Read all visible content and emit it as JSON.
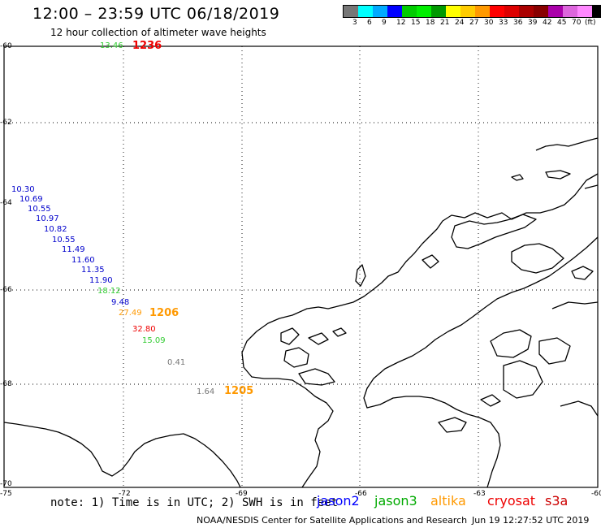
{
  "header": {
    "title": "12:00 – 23:59 UTC 06/18/2019",
    "subtitle": "12 hour collection of altimeter wave heights"
  },
  "legend": {
    "colors": [
      "#777777",
      "#00ffff",
      "#00aaff",
      "#0000ff",
      "#00cc00",
      "#00ee00",
      "#009900",
      "#ffff00",
      "#ffcc00",
      "#ff9900",
      "#ff0000",
      "#dd0000",
      "#aa0000",
      "#880000",
      "#aa00aa",
      "#dd66dd",
      "#ff88ff",
      "#000000"
    ],
    "labels": [
      "3",
      "6",
      "9",
      "12",
      "15",
      "18",
      "21",
      "24",
      "27",
      "30",
      "33",
      "36",
      "39",
      "42",
      "45",
      "70",
      "(ft)"
    ]
  },
  "axes": {
    "lat_labels": [
      "-60",
      "-62",
      "-64",
      "-66",
      "-68",
      "-70"
    ],
    "lon_labels": [
      "-75",
      "-72",
      "-69",
      "-66",
      "-63",
      "-60"
    ]
  },
  "observations": [
    {
      "text": "13.46",
      "color": "#33cc33"
    },
    {
      "text": "1236",
      "color": "#ee0000",
      "bold": true
    },
    {
      "text": "10.30",
      "color": "#0000cc"
    },
    {
      "text": "10.69",
      "color": "#0000cc"
    },
    {
      "text": "10.55",
      "color": "#0000cc"
    },
    {
      "text": "10.97",
      "color": "#0000cc"
    },
    {
      "text": "10.82",
      "color": "#0000cc"
    },
    {
      "text": "10.55",
      "color": "#0000cc"
    },
    {
      "text": "11.49",
      "color": "#0000cc"
    },
    {
      "text": "11.60",
      "color": "#0000cc"
    },
    {
      "text": "11.35",
      "color": "#0000cc"
    },
    {
      "text": "11.90",
      "color": "#0000cc"
    },
    {
      "text": "18.12",
      "color": "#33cc33"
    },
    {
      "text": "9.48",
      "color": "#0000cc"
    },
    {
      "text": "27.49",
      "color": "#ff9900"
    },
    {
      "text": "1206",
      "color": "#ff9900",
      "bold": true
    },
    {
      "text": "32.80",
      "color": "#ee0000"
    },
    {
      "text": "15.09",
      "color": "#33cc33"
    },
    {
      "text": "0.41",
      "color": "#777777"
    },
    {
      "text": "1.64",
      "color": "#777777"
    },
    {
      "text": "1205",
      "color": "#ff9900",
      "bold": true
    }
  ],
  "footer": {
    "note": "note: 1) Time is in UTC; 2) SWH is in feet",
    "satellites": [
      {
        "name": "jason2",
        "color": "#0000ff"
      },
      {
        "name": "jason3",
        "color": "#00aa00"
      },
      {
        "name": "altika",
        "color": "#ff9900"
      },
      {
        "name": "cryosat",
        "color": "#ee0000"
      },
      {
        "name": "s3a",
        "color": "#cc0000"
      }
    ],
    "credit": "NOAA/NESDIS Center for Satellite Applications and Research",
    "timestamp": "Jun 19 12:27:52 UTC 2019"
  }
}
